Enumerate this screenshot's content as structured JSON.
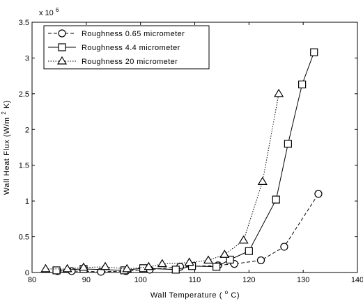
{
  "chart_data": {
    "type": "line",
    "xlabel": {
      "prefix": "Wall Temperature (",
      "sup": "o",
      "suffix": "C)"
    },
    "ylabel": {
      "prefix": "Wall Heat Flux (W/m",
      "sup": "2",
      "suffix": " K)"
    },
    "xlim": [
      80,
      140
    ],
    "ylim": [
      0,
      3.5
    ],
    "y_multiplier": {
      "base": "x 10",
      "exp": "6"
    },
    "x_ticks": [
      "80",
      "90",
      "100",
      "110",
      "120",
      "130",
      "140"
    ],
    "y_ticks": [
      "0",
      "0.5",
      "1",
      "1.5",
      "2",
      "2.5",
      "3",
      "3.5"
    ],
    "grid": false,
    "legend_position": "top-left",
    "series": [
      {
        "name": "Roughness 0.65 micrometer",
        "marker": "circle",
        "line": "dashed",
        "x": [
          84.7,
          87.3,
          92.7,
          97.3,
          101.7,
          107.3,
          114.3,
          117.3,
          122.2,
          126.5,
          132.8
        ],
        "y": [
          0.02,
          0.02,
          0.01,
          0.02,
          0.04,
          0.08,
          0.1,
          0.12,
          0.17,
          0.36,
          1.1
        ]
      },
      {
        "name": "Roughness 4.4 micrometer",
        "marker": "square",
        "line": "solid",
        "x": [
          84.5,
          89.5,
          97,
          100.5,
          106.5,
          109.5,
          114,
          116.5,
          120,
          125,
          127.2,
          129.8,
          132
        ],
        "y": [
          0.03,
          0.05,
          0.03,
          0.06,
          0.04,
          0.09,
          0.08,
          0.18,
          0.3,
          1.02,
          1.8,
          2.63,
          3.08
        ]
      },
      {
        "name": "Roughness 20 micrometer",
        "marker": "triangle",
        "line": "dotted",
        "x": [
          82.5,
          86.5,
          89.5,
          93.5,
          97.5,
          101.5,
          104,
          109,
          112.5,
          115.5,
          119,
          122.5,
          125.5
        ],
        "y": [
          0.05,
          0.05,
          0.07,
          0.08,
          0.05,
          0.08,
          0.12,
          0.14,
          0.17,
          0.25,
          0.45,
          1.27,
          2.5
        ]
      }
    ]
  }
}
